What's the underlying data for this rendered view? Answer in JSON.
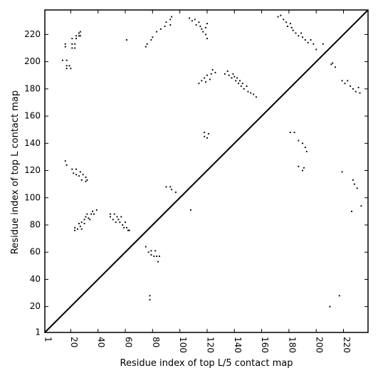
{
  "chart_data": {
    "type": "heatmap",
    "xlabel": "Residue index of top L/5 contact map",
    "ylabel": "Residue index of top L contact map",
    "xlim": [
      1,
      238
    ],
    "ylim": [
      1,
      238
    ],
    "x_ticks": [
      {
        "value": 1,
        "label": "1"
      },
      {
        "value": 20,
        "label": "20"
      },
      {
        "value": 40,
        "label": "40"
      },
      {
        "value": 60,
        "label": "60"
      },
      {
        "value": 80,
        "label": "80"
      },
      {
        "value": 100,
        "label": "100"
      },
      {
        "value": 120,
        "label": "120"
      },
      {
        "value": 140,
        "label": "140"
      },
      {
        "value": 160,
        "label": "160"
      },
      {
        "value": 180,
        "label": "180"
      },
      {
        "value": 200,
        "label": "200"
      },
      {
        "value": 220,
        "label": "220"
      }
    ],
    "y_ticks": [
      {
        "value": 1,
        "label": "1"
      },
      {
        "value": 20,
        "label": "20"
      },
      {
        "value": 40,
        "label": "40"
      },
      {
        "value": 60,
        "label": "60"
      },
      {
        "value": 80,
        "label": "80"
      },
      {
        "value": 100,
        "label": "100"
      },
      {
        "value": 120,
        "label": "120"
      },
      {
        "value": 140,
        "label": "140"
      },
      {
        "value": 160,
        "label": "160"
      },
      {
        "value": 180,
        "label": "180"
      },
      {
        "value": 200,
        "label": "200"
      },
      {
        "value": 220,
        "label": "220"
      }
    ],
    "grid": false,
    "diagonal": true,
    "colors": {
      "contact": "#000000",
      "background": "#ffffff",
      "diagonal": "#000000"
    },
    "contacts": [
      [
        14,
        201
      ],
      [
        17,
        201
      ],
      [
        16,
        211
      ],
      [
        16,
        213
      ],
      [
        17,
        195
      ],
      [
        17,
        197
      ],
      [
        19,
        197
      ],
      [
        20,
        195
      ],
      [
        21,
        210
      ],
      [
        21,
        213
      ],
      [
        21,
        217
      ],
      [
        23,
        210
      ],
      [
        23,
        213
      ],
      [
        24,
        217
      ],
      [
        24,
        219
      ],
      [
        26,
        219
      ],
      [
        26,
        221
      ],
      [
        27,
        219
      ],
      [
        27,
        222
      ],
      [
        16,
        127
      ],
      [
        17,
        124
      ],
      [
        21,
        121
      ],
      [
        22,
        118
      ],
      [
        24,
        117
      ],
      [
        24,
        121
      ],
      [
        26,
        116
      ],
      [
        27,
        119
      ],
      [
        28,
        113
      ],
      [
        29,
        117
      ],
      [
        31,
        112
      ],
      [
        32,
        113
      ],
      [
        31,
        115
      ],
      [
        23,
        76
      ],
      [
        23,
        78
      ],
      [
        25,
        77
      ],
      [
        26,
        81
      ],
      [
        27,
        79
      ],
      [
        28,
        77
      ],
      [
        28,
        82
      ],
      [
        30,
        81
      ],
      [
        30,
        84
      ],
      [
        31,
        86
      ],
      [
        32,
        88
      ],
      [
        33,
        85
      ],
      [
        34,
        84
      ],
      [
        35,
        88
      ],
      [
        36,
        90
      ],
      [
        37,
        88
      ],
      [
        39,
        91
      ],
      [
        49,
        86
      ],
      [
        49,
        88
      ],
      [
        51,
        84
      ],
      [
        52,
        88
      ],
      [
        53,
        82
      ],
      [
        54,
        86
      ],
      [
        55,
        84
      ],
      [
        56,
        82
      ],
      [
        57,
        86
      ],
      [
        58,
        80
      ],
      [
        59,
        78
      ],
      [
        60,
        82
      ],
      [
        61,
        78
      ],
      [
        62,
        76
      ],
      [
        63,
        76
      ],
      [
        61,
        216
      ],
      [
        75,
        211
      ],
      [
        76,
        213
      ],
      [
        79,
        216
      ],
      [
        80,
        218
      ],
      [
        83,
        222
      ],
      [
        86,
        224
      ],
      [
        89,
        226
      ],
      [
        90,
        229
      ],
      [
        93,
        227
      ],
      [
        93,
        231
      ],
      [
        94,
        233
      ],
      [
        75,
        64
      ],
      [
        77,
        60
      ],
      [
        79,
        58
      ],
      [
        79,
        61
      ],
      [
        81,
        57
      ],
      [
        82,
        61
      ],
      [
        83,
        57
      ],
      [
        84,
        53
      ],
      [
        85,
        57
      ],
      [
        78,
        25
      ],
      [
        78,
        28
      ],
      [
        90,
        108
      ],
      [
        93,
        108
      ],
      [
        94,
        106
      ],
      [
        97,
        104
      ],
      [
        108,
        91
      ],
      [
        107,
        232
      ],
      [
        109,
        230
      ],
      [
        111,
        231
      ],
      [
        112,
        227
      ],
      [
        114,
        229
      ],
      [
        115,
        226
      ],
      [
        116,
        224
      ],
      [
        117,
        222
      ],
      [
        119,
        220
      ],
      [
        119,
        225
      ],
      [
        120,
        228
      ],
      [
        120,
        217
      ],
      [
        114,
        184
      ],
      [
        116,
        186
      ],
      [
        118,
        188
      ],
      [
        119,
        185
      ],
      [
        120,
        190
      ],
      [
        122,
        187
      ],
      [
        123,
        191
      ],
      [
        124,
        194
      ],
      [
        126,
        192
      ],
      [
        118,
        148
      ],
      [
        118,
        145
      ],
      [
        120,
        144
      ],
      [
        121,
        147
      ],
      [
        133,
        191
      ],
      [
        135,
        193
      ],
      [
        136,
        190
      ],
      [
        138,
        188
      ],
      [
        139,
        191
      ],
      [
        140,
        189
      ],
      [
        141,
        186
      ],
      [
        142,
        188
      ],
      [
        143,
        184
      ],
      [
        144,
        186
      ],
      [
        145,
        182
      ],
      [
        146,
        184
      ],
      [
        147,
        180
      ],
      [
        149,
        182
      ],
      [
        150,
        178
      ],
      [
        152,
        177
      ],
      [
        154,
        176
      ],
      [
        156,
        174
      ],
      [
        172,
        233
      ],
      [
        174,
        234
      ],
      [
        176,
        231
      ],
      [
        178,
        229
      ],
      [
        179,
        226
      ],
      [
        181,
        228
      ],
      [
        182,
        225
      ],
      [
        183,
        223
      ],
      [
        185,
        221
      ],
      [
        187,
        219
      ],
      [
        189,
        221
      ],
      [
        190,
        218
      ],
      [
        192,
        216
      ],
      [
        194,
        214
      ],
      [
        196,
        216
      ],
      [
        198,
        213
      ],
      [
        200,
        209
      ],
      [
        205,
        213
      ],
      [
        181,
        148
      ],
      [
        184,
        148
      ],
      [
        187,
        142
      ],
      [
        190,
        140
      ],
      [
        192,
        137
      ],
      [
        193,
        134
      ],
      [
        187,
        123
      ],
      [
        190,
        120
      ],
      [
        191,
        122
      ],
      [
        211,
        198
      ],
      [
        212,
        199
      ],
      [
        214,
        196
      ],
      [
        219,
        186
      ],
      [
        221,
        184
      ],
      [
        223,
        186
      ],
      [
        225,
        182
      ],
      [
        227,
        180
      ],
      [
        229,
        178
      ],
      [
        231,
        181
      ],
      [
        232,
        177
      ],
      [
        219,
        119
      ],
      [
        227,
        113
      ],
      [
        228,
        110
      ],
      [
        230,
        107
      ],
      [
        226,
        90
      ],
      [
        233,
        94
      ],
      [
        210,
        20
      ],
      [
        217,
        28
      ]
    ]
  }
}
